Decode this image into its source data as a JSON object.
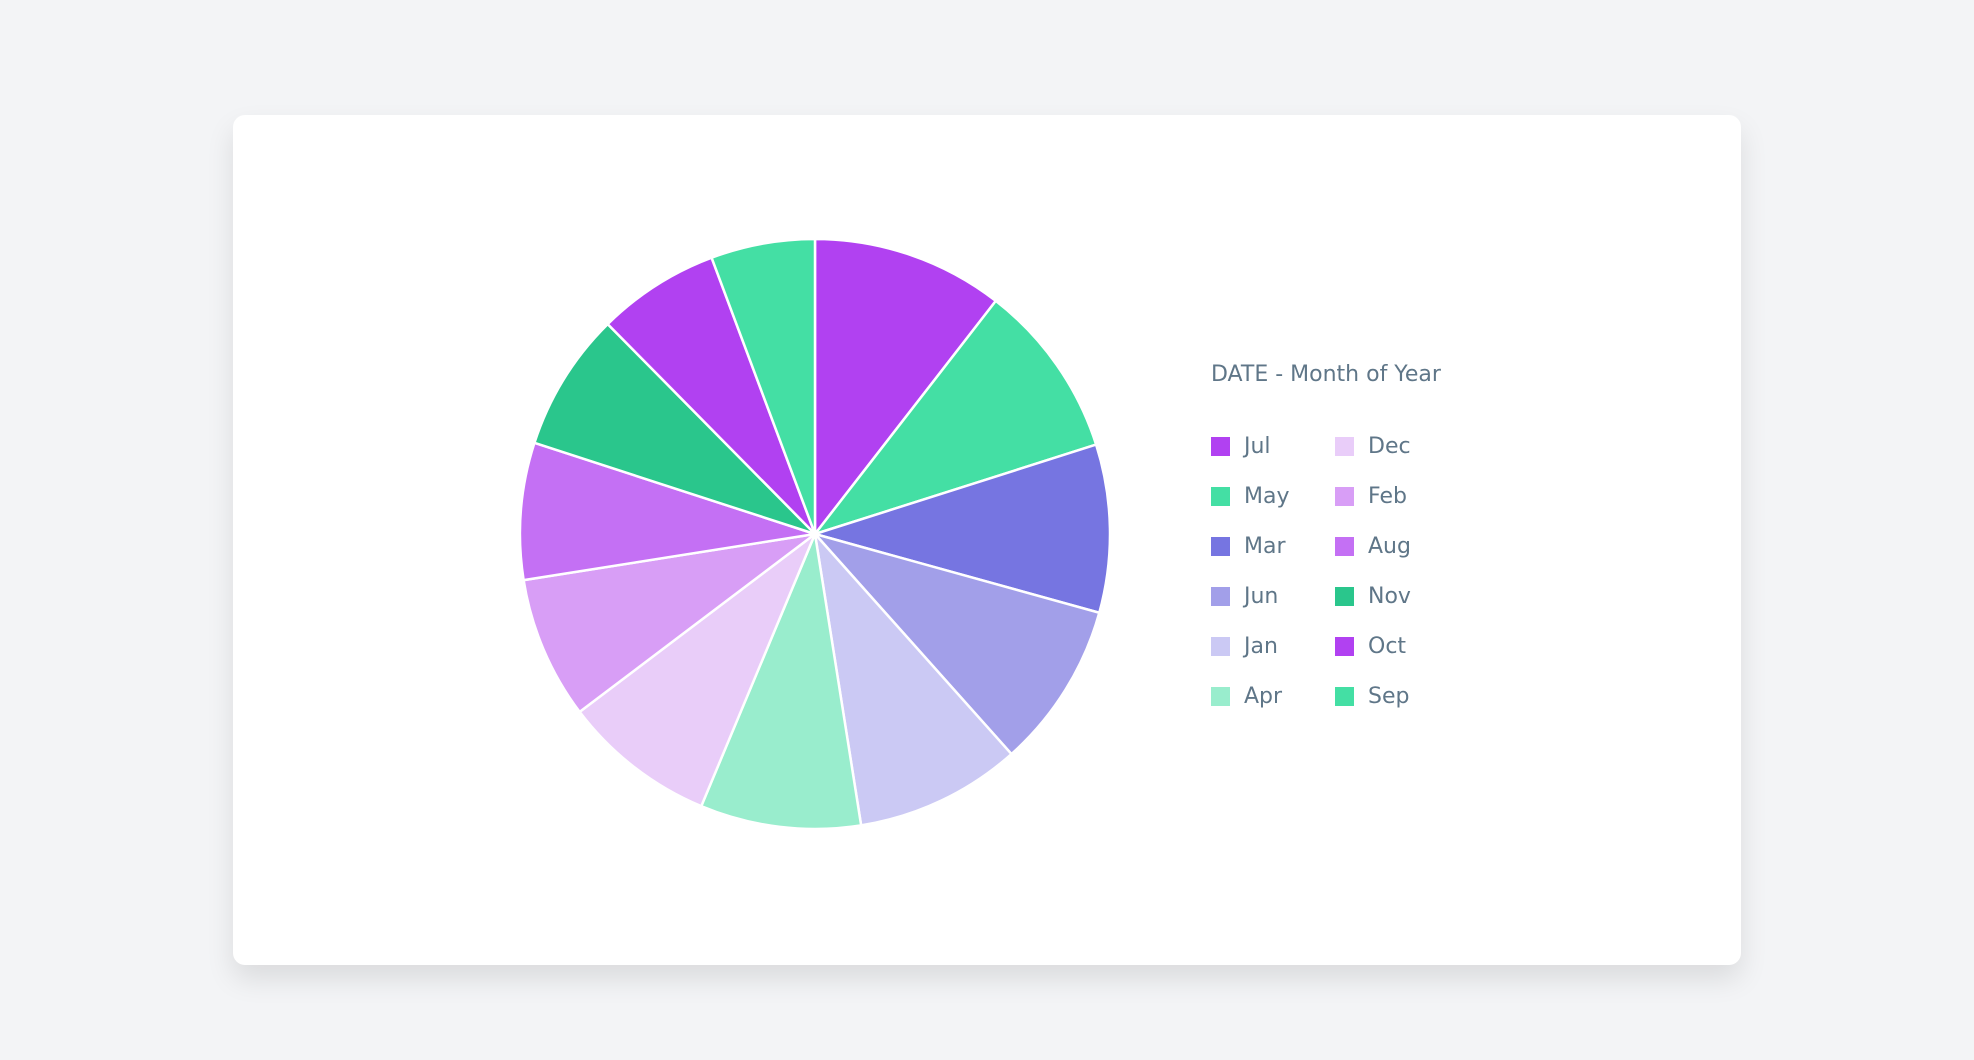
{
  "chart_data": {
    "type": "pie",
    "legend_title": "DATE - Month of Year",
    "legend_placement": "right",
    "unit": "percent (estimated share)",
    "slices": [
      {
        "label": "Jul",
        "value": 10.5,
        "color": "#b141f1"
      },
      {
        "label": "May",
        "value": 9.6,
        "color": "#44dfa4"
      },
      {
        "label": "Mar",
        "value": 9.2,
        "color": "#7675e1"
      },
      {
        "label": "Jun",
        "value": 9.1,
        "color": "#a29fe9"
      },
      {
        "label": "Jan",
        "value": 9.1,
        "color": "#cbc9f4"
      },
      {
        "label": "Apr",
        "value": 8.8,
        "color": "#99edcd"
      },
      {
        "label": "Dec",
        "value": 8.4,
        "color": "#e9cdf9"
      },
      {
        "label": "Feb",
        "value": 7.8,
        "color": "#d89ef6"
      },
      {
        "label": "Aug",
        "value": 7.5,
        "color": "#c470f4"
      },
      {
        "label": "Nov",
        "value": 7.6,
        "color": "#2ac68c"
      },
      {
        "label": "Oct",
        "value": 6.7,
        "color": "#b141f1"
      },
      {
        "label": "Sep",
        "value": 5.7,
        "color": "#44dfa4"
      }
    ]
  }
}
